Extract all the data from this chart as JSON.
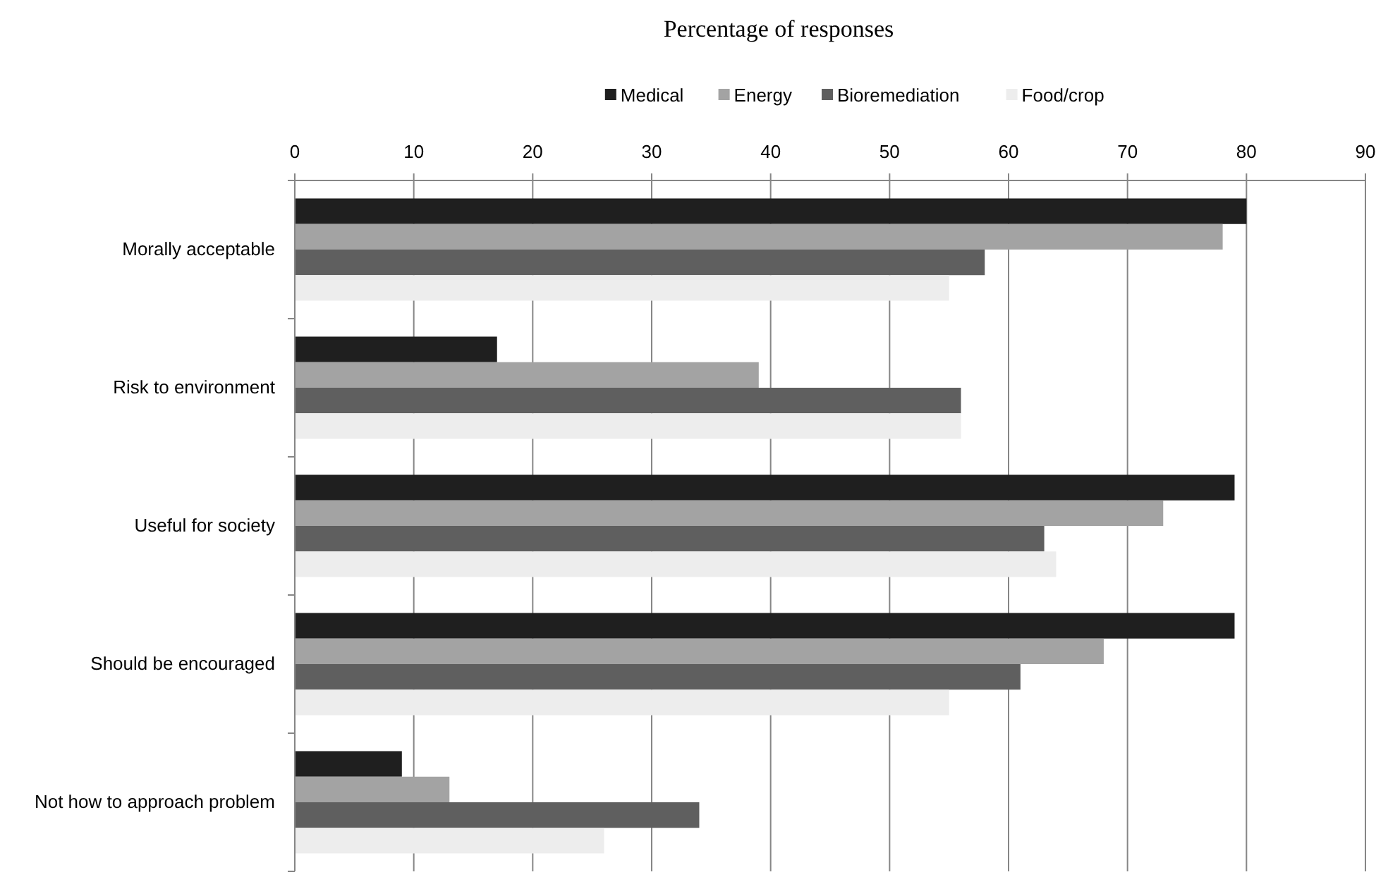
{
  "chart_data": {
    "type": "bar",
    "orientation": "horizontal",
    "title": "Percentage of responses",
    "categories": [
      "Morally acceptable",
      "Risk to environment",
      "Useful for society",
      "Should be encouraged",
      "Not how to approach problem"
    ],
    "series": [
      {
        "name": "Medical",
        "color": "#1f1f1f",
        "values": [
          80,
          17,
          79,
          79,
          9
        ]
      },
      {
        "name": "Energy",
        "color": "#a3a3a3",
        "values": [
          78,
          39,
          73,
          68,
          13
        ]
      },
      {
        "name": "Bioremediation",
        "color": "#5f5f5f",
        "values": [
          58,
          56,
          63,
          61,
          34
        ]
      },
      {
        "name": "Food/crop",
        "color": "#ededed",
        "values": [
          55,
          56,
          64,
          55,
          26
        ]
      }
    ],
    "xlim": [
      0,
      90
    ],
    "xticks": [
      0,
      10,
      20,
      30,
      40,
      50,
      60,
      70,
      80,
      90
    ],
    "grid": "x",
    "legend": "top"
  }
}
